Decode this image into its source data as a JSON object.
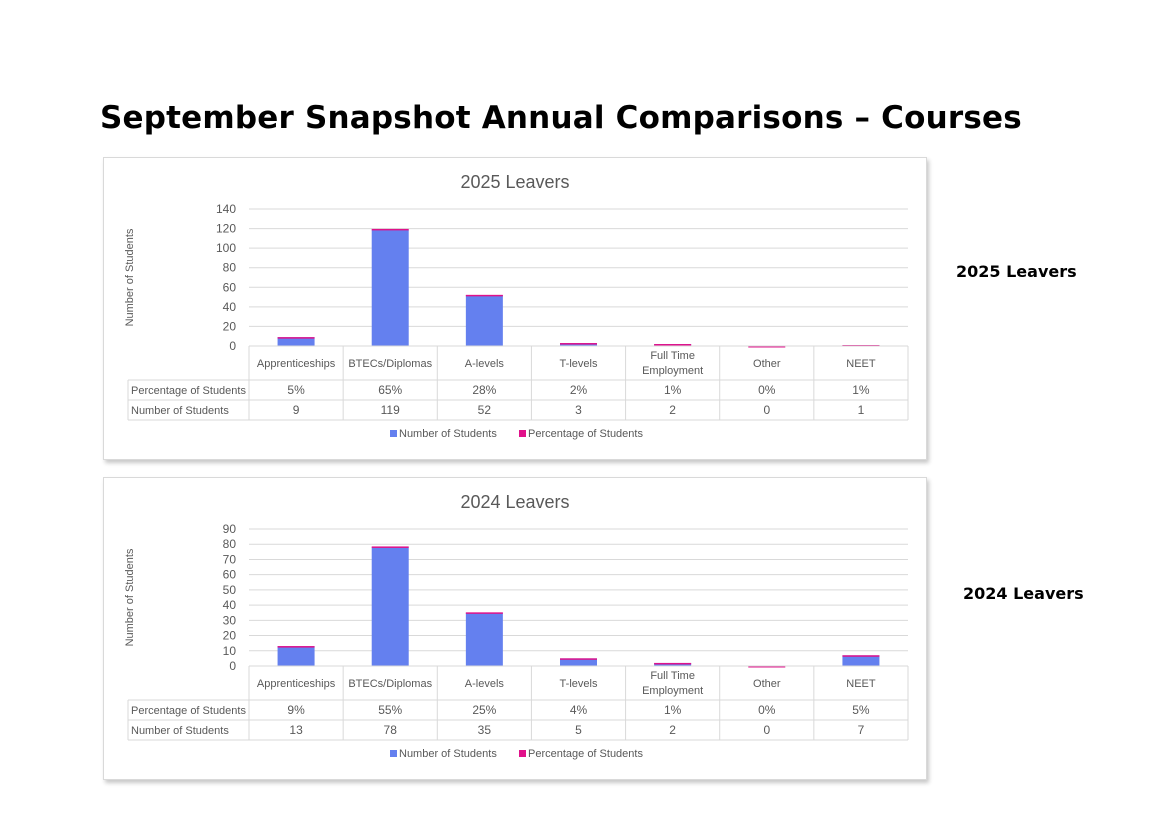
{
  "page": {
    "title": "September Snapshot Annual Comparisons – Courses",
    "side_labels": [
      "2025 Leavers",
      "2024 Leavers"
    ]
  },
  "colors": {
    "number": "#6480ef",
    "percentage": "#e0118a",
    "grid": "#d9d9d9",
    "text": "#595959"
  },
  "chart_data": [
    {
      "type": "bar",
      "title": "2025 Leavers",
      "ylabel": "Number of Students",
      "categories": [
        "Apprenticeships",
        "BTECs/Diplomas",
        "A-levels",
        "T-levels",
        "Full Time Employment",
        "Other",
        "NEET"
      ],
      "ylim": [
        0,
        140
      ],
      "yticks": [
        0,
        20,
        40,
        60,
        80,
        100,
        120,
        140
      ],
      "stacked": true,
      "legend_position": "bottom",
      "series": [
        {
          "name": "Number of Students",
          "values": [
            9,
            119,
            52,
            3,
            2,
            0,
            1
          ]
        },
        {
          "name": "Percentage of Students",
          "values": [
            0.05,
            0.65,
            0.28,
            0.02,
            0.01,
            0,
            0.01
          ]
        }
      ],
      "data_table": {
        "rows": [
          {
            "label": "Percentage of Students",
            "cells": [
              "5%",
              "65%",
              "28%",
              "2%",
              "1%",
              "0%",
              "1%"
            ]
          },
          {
            "label": "Number of Students",
            "cells": [
              "9",
              "119",
              "52",
              "3",
              "2",
              "0",
              "1"
            ]
          }
        ]
      }
    },
    {
      "type": "bar",
      "title": "2024 Leavers",
      "ylabel": "Number of Students",
      "categories": [
        "Apprenticeships",
        "BTECs/Diplomas",
        "A-levels",
        "T-levels",
        "Full Time Employment",
        "Other",
        "NEET"
      ],
      "ylim": [
        0,
        90
      ],
      "yticks": [
        0,
        10,
        20,
        30,
        40,
        50,
        60,
        70,
        80,
        90
      ],
      "stacked": true,
      "legend_position": "bottom",
      "series": [
        {
          "name": "Number of Students",
          "values": [
            13,
            78,
            35,
            5,
            2,
            0,
            7
          ]
        },
        {
          "name": "Percentage of Students",
          "values": [
            0.09,
            0.55,
            0.25,
            0.04,
            0.01,
            0,
            0.05
          ]
        }
      ],
      "data_table": {
        "rows": [
          {
            "label": "Percentage of Students",
            "cells": [
              "9%",
              "55%",
              "25%",
              "4%",
              "1%",
              "0%",
              "5%"
            ]
          },
          {
            "label": "Number of Students",
            "cells": [
              "13",
              "78",
              "35",
              "5",
              "2",
              "0",
              "7"
            ]
          }
        ]
      }
    }
  ]
}
